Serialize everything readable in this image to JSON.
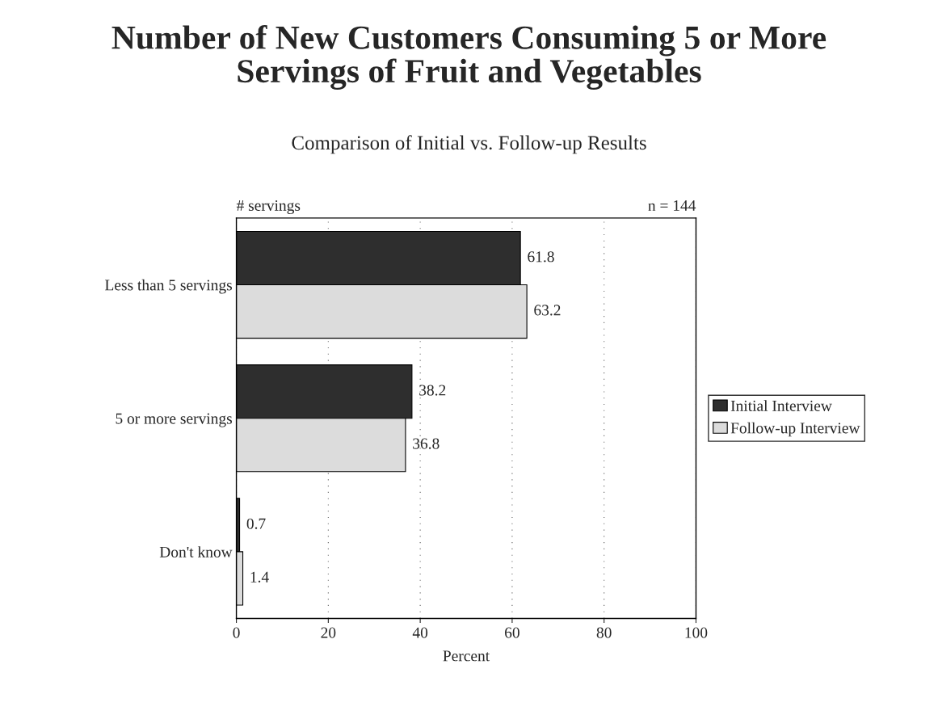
{
  "chart_data": {
    "type": "bar",
    "orientation": "horizontal",
    "title": "Number of New Customers Consuming 5 or More\nServings of Fruit and Vegetables",
    "subtitle": "Comparison of Initial vs. Follow-up Results",
    "xlabel": "Percent",
    "ylabel": "# servings",
    "annotations": [
      "n = 144"
    ],
    "categories": [
      "Less than 5 servings",
      "5 or more servings",
      "Don't know"
    ],
    "series": [
      {
        "name": "Initial Interview",
        "color": "#2e2e2e",
        "values": [
          61.8,
          38.2,
          0.7
        ]
      },
      {
        "name": "Follow-up Interview",
        "color": "#dcdcdc",
        "values": [
          63.2,
          36.8,
          1.4
        ]
      }
    ],
    "xlim": [
      0,
      100
    ],
    "xticks": [
      0,
      20,
      40,
      60,
      80,
      100
    ],
    "data_labels": true,
    "grid": "x",
    "legend": "right"
  }
}
